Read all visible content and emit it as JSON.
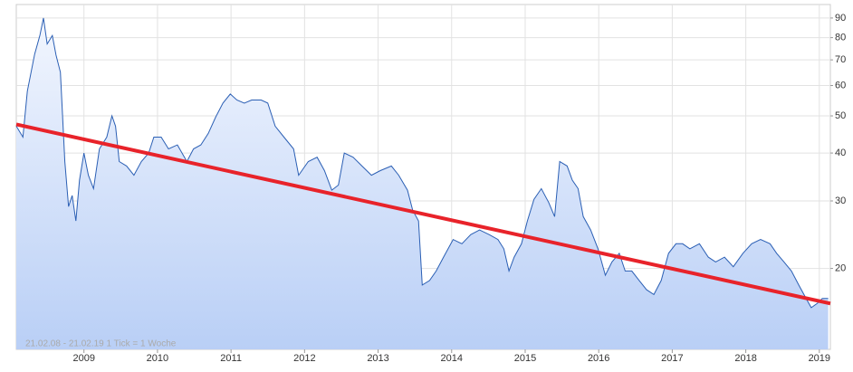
{
  "chart_data": {
    "type": "area",
    "footnote": "21.02.08 - 21.02.19   1 Tick = 1 Woche",
    "x": [
      2008.08,
      2008.17,
      2008.23,
      2008.33,
      2008.4,
      2008.45,
      2008.5,
      2008.57,
      2008.62,
      2008.68,
      2008.74,
      2008.79,
      2008.84,
      2008.89,
      2008.94,
      2009.0,
      2009.06,
      2009.13,
      2009.21,
      2009.31,
      2009.38,
      2009.43,
      2009.48,
      2009.58,
      2009.68,
      2009.78,
      2009.88,
      2009.95,
      2010.05,
      2010.15,
      2010.27,
      2010.4,
      2010.49,
      2010.59,
      2010.69,
      2010.79,
      2010.89,
      2010.99,
      2011.08,
      2011.18,
      2011.28,
      2011.41,
      2011.5,
      2011.6,
      2011.72,
      2011.85,
      2011.92,
      2012.05,
      2012.17,
      2012.27,
      2012.37,
      2012.46,
      2012.54,
      2012.66,
      2012.78,
      2012.91,
      2013.03,
      2013.18,
      2013.28,
      2013.4,
      2013.47,
      2013.55,
      2013.6,
      2013.7,
      2013.79,
      2013.89,
      2014.02,
      2014.14,
      2014.26,
      2014.38,
      2014.51,
      2014.63,
      2014.71,
      2014.78,
      2014.85,
      2014.95,
      2015.03,
      2015.12,
      2015.22,
      2015.32,
      2015.4,
      2015.47,
      2015.57,
      2015.64,
      2015.72,
      2015.79,
      2015.89,
      2015.99,
      2016.09,
      2016.18,
      2016.28,
      2016.36,
      2016.45,
      2016.55,
      2016.65,
      2016.75,
      2016.85,
      2016.95,
      2017.05,
      2017.14,
      2017.24,
      2017.37,
      2017.49,
      2017.59,
      2017.71,
      2017.83,
      2017.96,
      2018.08,
      2018.2,
      2018.33,
      2018.42,
      2018.52,
      2018.62,
      2018.72,
      2018.82,
      2018.89,
      2018.97,
      2019.04,
      2019.12
    ],
    "series": [
      {
        "color": "#2b5fb4",
        "values": [
          47,
          44,
          58,
          72.5,
          81,
          90,
          77,
          81,
          72,
          65,
          38,
          29,
          31,
          26.6,
          34,
          40,
          35,
          32.3,
          41,
          44,
          50,
          47,
          38,
          37,
          35,
          38,
          40,
          44,
          44,
          41,
          42,
          38,
          41,
          42,
          45,
          49.6,
          54,
          57,
          55,
          54,
          55,
          55,
          54,
          47,
          44,
          41,
          35,
          38,
          39,
          36,
          32,
          33,
          40,
          39,
          37,
          35,
          36,
          37,
          35,
          32,
          28.4,
          26.6,
          18.1,
          18.6,
          19.7,
          21.4,
          23.8,
          23.2,
          24.5,
          25.2,
          24.5,
          23.8,
          22.5,
          19.7,
          21.4,
          23.2,
          26.6,
          30.3,
          32.3,
          29.7,
          27.3,
          38,
          37,
          34,
          32.3,
          27.3,
          25.2,
          22.5,
          19.2,
          20.8,
          21.9,
          19.7,
          19.7,
          18.6,
          17.6,
          17.1,
          18.6,
          21.9,
          23.2,
          23.2,
          22.5,
          23.2,
          21.4,
          20.8,
          21.4,
          20.2,
          21.9,
          23.2,
          23.8,
          23.2,
          21.9,
          20.8,
          19.7,
          18.1,
          16.7,
          15.8,
          16.2,
          16.7,
          16.7
        ]
      }
    ],
    "trendline": {
      "x": [
        2008.08,
        2019.15
      ],
      "values": [
        47.5,
        16.2
      ],
      "color": "#e8232a"
    },
    "xlim": [
      2008.08,
      2019.15
    ],
    "xticks": [
      2009,
      2010,
      2011,
      2012,
      2013,
      2014,
      2015,
      2016,
      2017,
      2018,
      2019
    ],
    "ylim": [
      12.3,
      97.6
    ],
    "yticks": [
      20,
      30,
      40,
      50,
      60,
      70,
      80,
      90
    ],
    "log_y": true,
    "grid": true
  }
}
